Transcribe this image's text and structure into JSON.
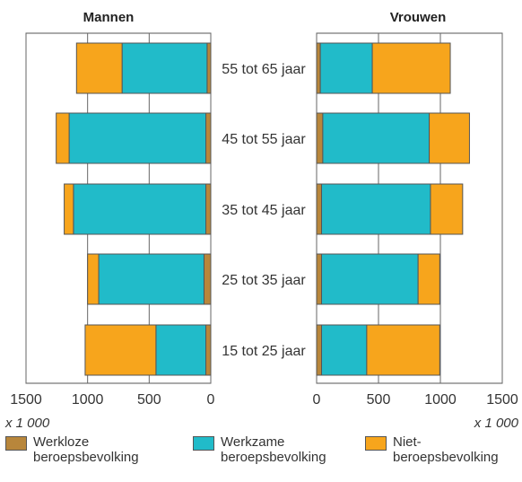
{
  "chart_data": {
    "type": "bar",
    "orientation": "horizontal",
    "categories": [
      "55 tot 65 jaar",
      "45 tot 55 jaar",
      "35 tot 45 jaar",
      "25 tot 35 jaar",
      "15 tot 25 jaar"
    ],
    "panels": [
      {
        "title": "Mannen",
        "direction": "right-to-left",
        "xlim": [
          0,
          1500
        ],
        "ticks": [
          "1500",
          "1000",
          "500",
          "0"
        ],
        "unit_label": "x 1 000",
        "series": [
          {
            "name": "Werkloze beroepsbevolking",
            "values": [
              30,
              40,
              40,
              55,
              40
            ]
          },
          {
            "name": "Werkzame beroepsbevolking",
            "values": [
              690,
              1110,
              1075,
              855,
              405
            ]
          },
          {
            "name": "Niet-beroepsbevolking",
            "values": [
              370,
              105,
              75,
              90,
              575
            ]
          }
        ]
      },
      {
        "title": "Vrouwen",
        "direction": "left-to-right",
        "xlim": [
          0,
          1500
        ],
        "ticks": [
          "0",
          "500",
          "1000",
          "1500"
        ],
        "unit_label": "x 1 000",
        "series": [
          {
            "name": "Werkloze beroepsbevolking",
            "values": [
              30,
              50,
              40,
              40,
              40
            ]
          },
          {
            "name": "Werkzame beroepsbevolking",
            "values": [
              420,
              860,
              880,
              780,
              365
            ]
          },
          {
            "name": "Niet-beroepsbevolking",
            "values": [
              630,
              325,
              260,
              175,
              590
            ]
          }
        ]
      }
    ],
    "colors": [
      "#b8863b",
      "#21bbc9",
      "#f7a51c"
    ],
    "legend": {
      "position": "bottom",
      "items": [
        {
          "label": "Werkloze\nberoepsbevolking",
          "color": "#b8863b"
        },
        {
          "label": "Werkzame\nberoepsbevolking",
          "color": "#21bbc9"
        },
        {
          "label": "Niet-\nberoepsbevolking",
          "color": "#f7a51c"
        }
      ]
    }
  }
}
